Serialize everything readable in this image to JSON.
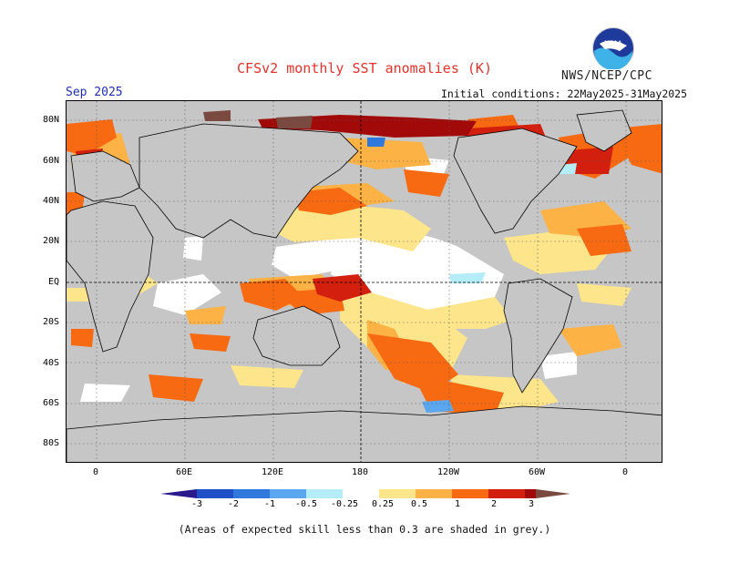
{
  "header": {
    "title": "CFSv2 monthly SST anomalies (K)",
    "agency": "NWS/NCEP/CPC",
    "forecast_month": "Sep 2025",
    "initial_conditions": "Initial conditions: 22May2025-31May2025",
    "logo_text": "NOAA"
  },
  "map": {
    "lat_labels": [
      "80N",
      "60N",
      "40N",
      "20N",
      "EQ",
      "20S",
      "40S",
      "60S",
      "80S"
    ],
    "lon_labels": [
      "0",
      "60E",
      "120E",
      "180",
      "120W",
      "60W",
      "0"
    ]
  },
  "legend": {
    "labels": [
      "-3",
      "-2",
      "-1",
      "-0.5",
      "-0.25",
      "0.25",
      "0.5",
      "1",
      "2",
      "3"
    ],
    "colors": {
      "below_-3": "#2a1a8c",
      "-3_-2": "#1f50c8",
      "-2_-1": "#2f79dd",
      "-1_-0.5": "#5aa6ef",
      "-0.5_-0.25": "#b4ecf8",
      "-0.25_0.25": "#ffffff",
      "0.25_0.5": "#fce58a",
      "0.5_1": "#fcb244",
      "1_2": "#f76a12",
      "2_3": "#d3200e",
      "above_3": "#a20a0a",
      "extreme": "#7a4a40",
      "low_skill": "#c6c6c6"
    }
  },
  "footnote": "(Areas of expected skill less than 0.3 are shaded in grey.)"
}
